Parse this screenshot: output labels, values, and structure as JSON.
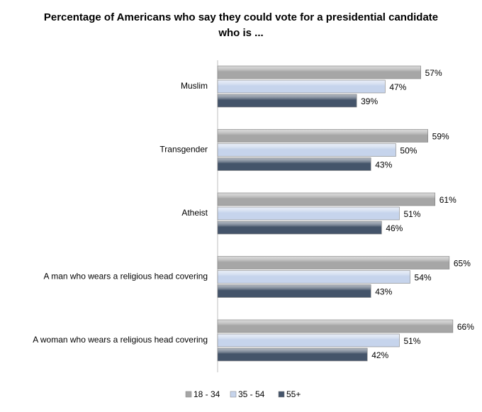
{
  "chart_data": {
    "type": "bar",
    "orientation": "horizontal",
    "title": "Percentage of Americans who say they could vote for a presidential candidate who is ...",
    "categories": [
      "Muslim",
      "Transgender",
      "Atheist",
      "A man who wears a religious head covering",
      "A woman who wears a religious head covering"
    ],
    "series": [
      {
        "name": "18 - 34",
        "color": "#a6a6a6",
        "values": [
          57,
          59,
          61,
          65,
          66
        ],
        "value_labels": [
          "57%",
          "59%",
          "61%",
          "65%",
          "66%"
        ]
      },
      {
        "name": "35 - 54",
        "color": "#c6d4ec",
        "values": [
          47,
          50,
          51,
          54,
          51
        ],
        "value_labels": [
          "47%",
          "50%",
          "51%",
          "54%",
          "51%"
        ]
      },
      {
        "name": "55+",
        "color": "#44546a",
        "values": [
          39,
          43,
          46,
          43,
          42
        ],
        "value_labels": [
          "39%",
          "43%",
          "46%",
          "43%",
          "42%"
        ]
      }
    ],
    "xlim": [
      0,
      70
    ],
    "legend": "bottom"
  }
}
